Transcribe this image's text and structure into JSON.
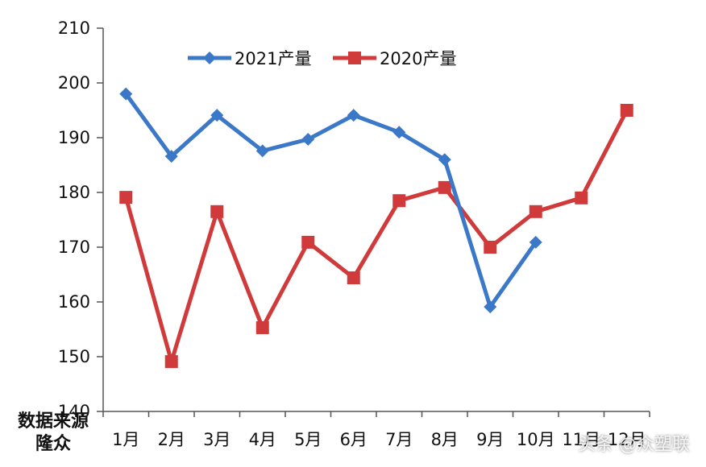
{
  "chart_data": {
    "type": "line",
    "title": "",
    "xlabel": "",
    "ylabel": "",
    "categories": [
      "1月",
      "2月",
      "3月",
      "4月",
      "5月",
      "6月",
      "7月",
      "8月",
      "9月",
      "10月",
      "11月",
      "12月"
    ],
    "series": [
      {
        "name": "2021产量",
        "color": "#3c78c8",
        "marker": "diamond",
        "values": [
          198.0,
          186.6,
          194.1,
          187.6,
          189.7,
          194.1,
          191.0,
          186.0,
          159.1,
          170.9,
          null,
          null
        ]
      },
      {
        "name": "2020产量",
        "color": "#d03a3a",
        "marker": "square",
        "values": [
          179.1,
          149.1,
          176.5,
          155.3,
          170.9,
          164.4,
          178.5,
          180.9,
          170.0,
          176.5,
          179.0,
          195.0
        ]
      }
    ],
    "ylim": [
      140,
      210
    ],
    "yticks": [
      140,
      150,
      160,
      170,
      180,
      190,
      200,
      210
    ],
    "grid": false,
    "legend_position": "top-center-inside"
  },
  "source_note": {
    "line1": "数据来源",
    "line2": "隆众"
  },
  "watermark": "头条 @众塑联"
}
